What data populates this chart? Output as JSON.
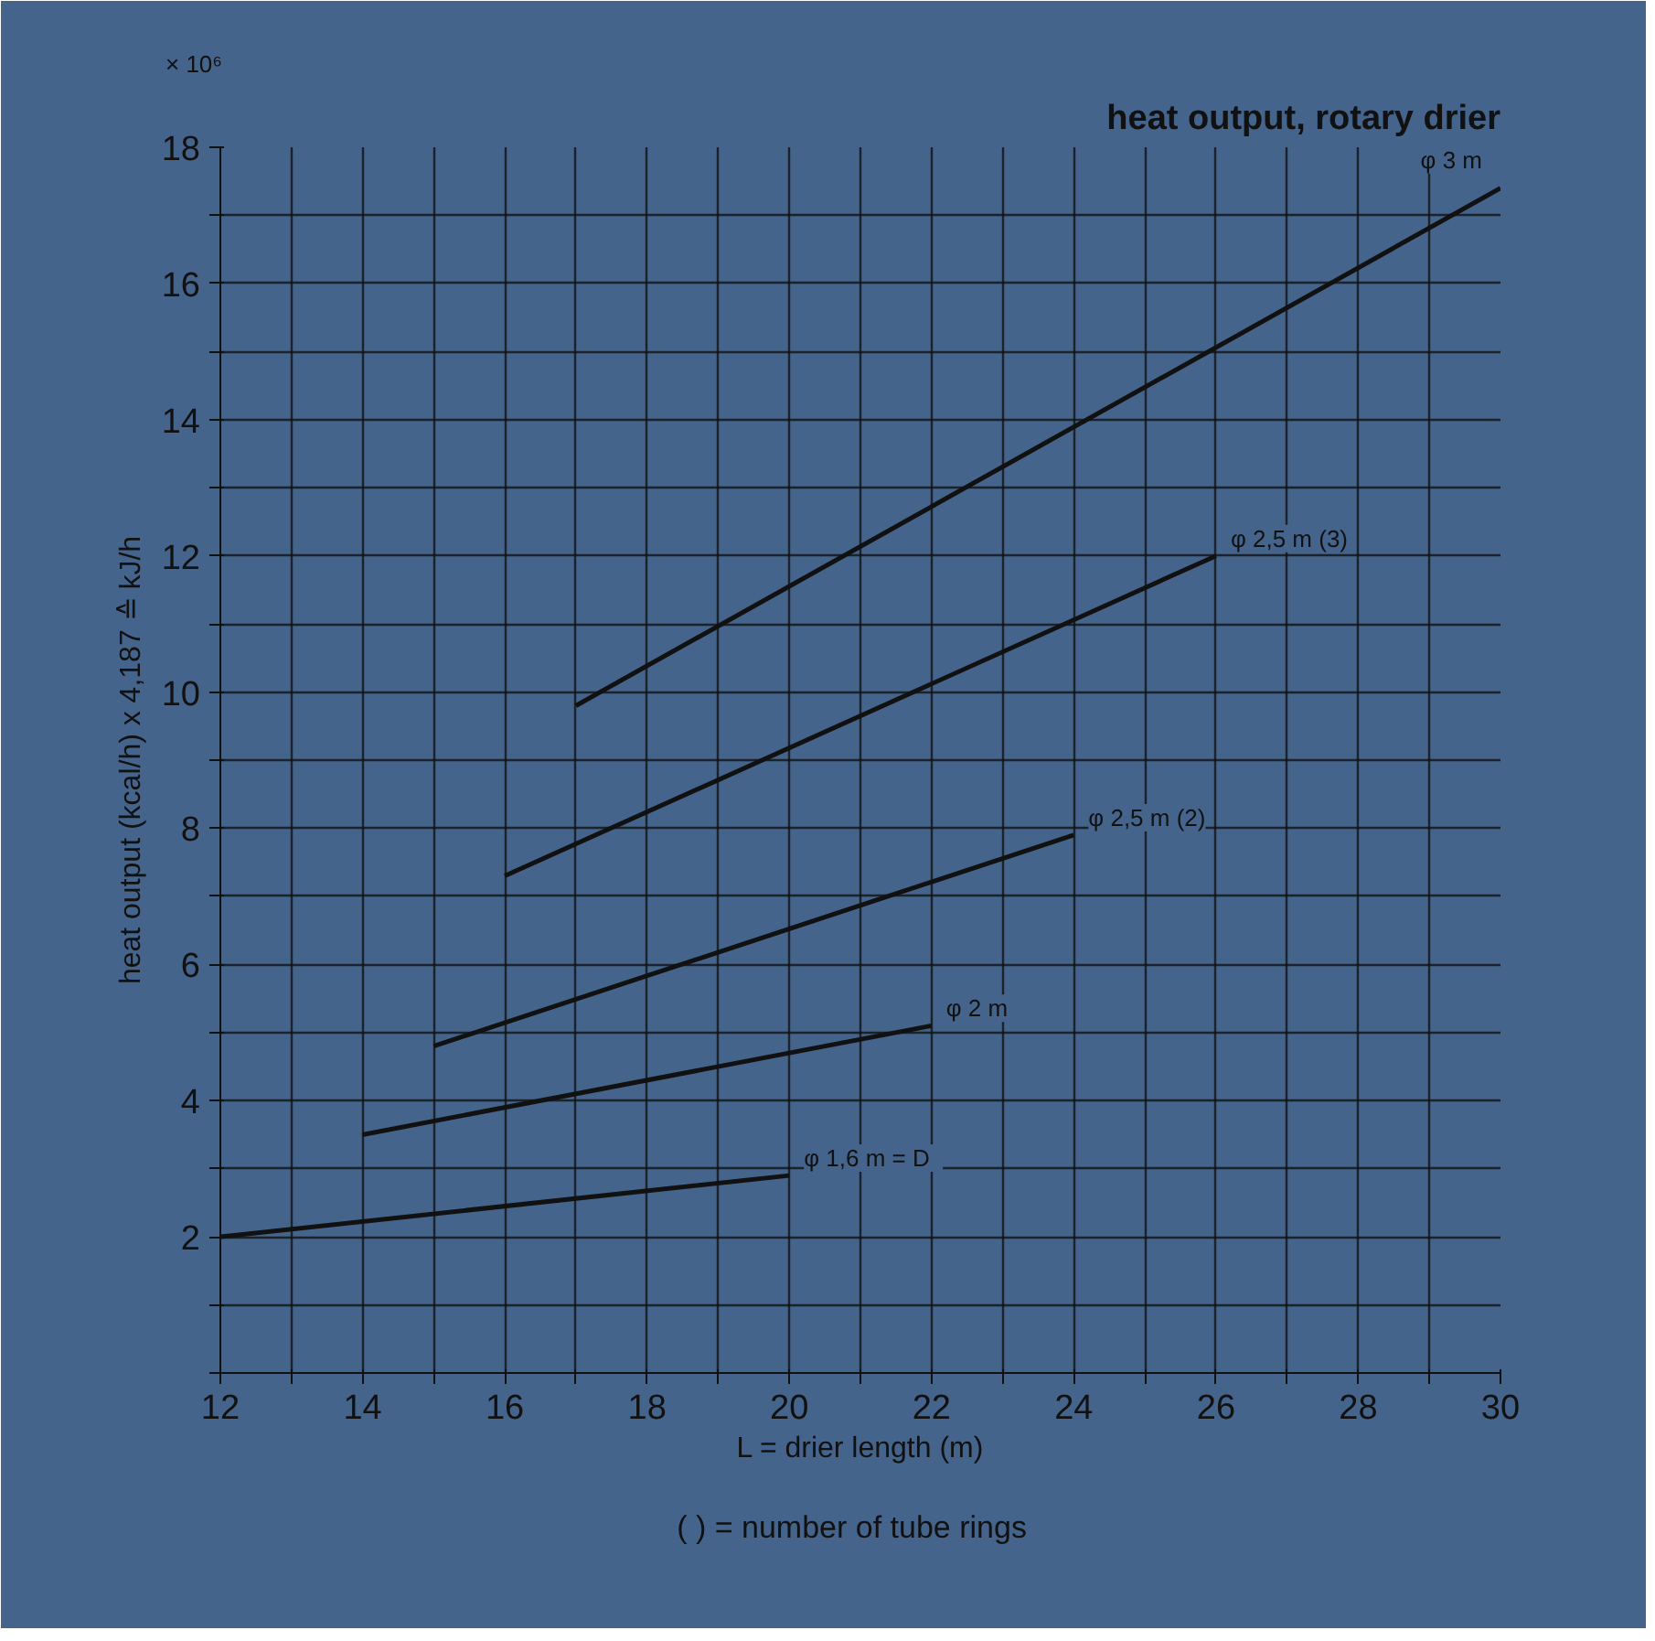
{
  "chart_data": {
    "type": "line",
    "title": "heat output, rotary drier",
    "xlabel": "L = drier length (m)",
    "ylabel": "heat output (kcal/h) x 4,187 ≙ kJ/h",
    "annotations": [
      "× 10⁶",
      "(   ) = number of tube rings"
    ],
    "series": [
      {
        "name": "φ 3 m",
        "color": "#111111",
        "x": [
          17,
          30
        ],
        "values": [
          9.8,
          17.4
        ]
      },
      {
        "name": "φ 2,5 m (3)",
        "color": "#111111",
        "x": [
          16,
          26
        ],
        "values": [
          7.3,
          12.0
        ]
      },
      {
        "name": "φ 2,5 m (2)",
        "color": "#111111",
        "x": [
          15,
          24
        ],
        "values": [
          4.8,
          7.9
        ]
      },
      {
        "name": "φ 2 m",
        "color": "#111111",
        "x": [
          14,
          22
        ],
        "values": [
          3.5,
          5.1
        ]
      },
      {
        "name": "φ 1,6 m  =  D",
        "color": "#111111",
        "x": [
          12,
          20
        ],
        "values": [
          2.0,
          2.9
        ]
      }
    ],
    "xlim": [
      12,
      30
    ],
    "ylim": [
      0,
      18
    ],
    "xticks": [
      12,
      {
        "value": 13,
        "label": null
      },
      14,
      {
        "value": 15,
        "label": null
      },
      16,
      {
        "value": 17,
        "label": null
      },
      18,
      {
        "value": 19,
        "label": null
      },
      20,
      {
        "value": 21,
        "label": null
      },
      22,
      {
        "value": 23,
        "label": null
      },
      24,
      {
        "value": 25,
        "label": null
      },
      26,
      {
        "value": 27,
        "label": null
      },
      28,
      {
        "value": 29,
        "label": null
      },
      30
    ],
    "yticks": [
      {
        "value": 0,
        "label": null
      },
      {
        "value": 1,
        "label": null
      },
      2,
      {
        "value": 3,
        "label": null
      },
      4,
      {
        "value": 5,
        "label": null
      },
      6,
      {
        "value": 7,
        "label": null
      },
      8,
      {
        "value": 9,
        "label": null
      },
      10,
      {
        "value": 11,
        "label": null
      },
      12,
      {
        "value": 13,
        "label": null
      },
      14,
      {
        "value": 15,
        "label": null
      },
      16,
      {
        "value": 17,
        "label": null
      },
      18
    ],
    "grid": true,
    "marker": "none",
    "line_style": "solid"
  }
}
